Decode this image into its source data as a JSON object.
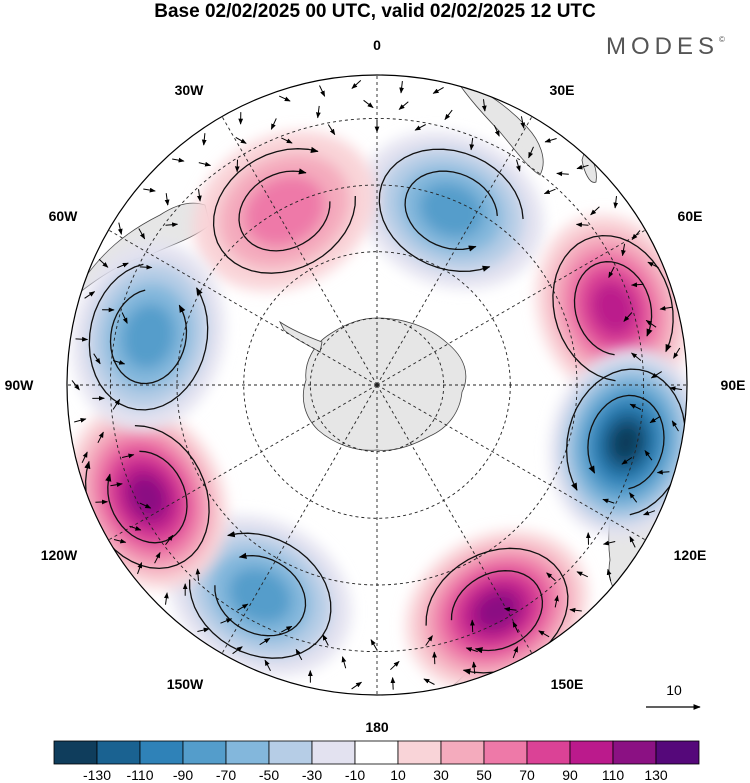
{
  "title": "Base 02/02/2025 00 UTC, valid 02/02/2025 12 UTC",
  "brand": "MODES",
  "brand_mark": "©",
  "longitude_labels": {
    "lon_0": "0",
    "lon_30e": "30E",
    "lon_60e": "60E",
    "lon_90e": "90E",
    "lon_120e": "120E",
    "lon_150e": "150E",
    "lon_180": "180",
    "lon_150w": "150W",
    "lon_120w": "120W",
    "lon_90w": "90W",
    "lon_60w": "60W",
    "lon_30w": "30W"
  },
  "vector_reference": {
    "value": "10"
  },
  "colorbar": {
    "colors": [
      "#0f3d5c",
      "#1a6291",
      "#2f82b8",
      "#549dcb",
      "#83b7dc",
      "#b6cde6",
      "#e3e2f0",
      "#ffffff",
      "#f9d4d8",
      "#f4abbd",
      "#ee79a8",
      "#db4296",
      "#bb1a8c",
      "#8b1183",
      "#55087a"
    ],
    "tick_labels": [
      "-130",
      "-110",
      "-90",
      "-70",
      "-50",
      "-30",
      "-10",
      "10",
      "30",
      "50",
      "70",
      "90",
      "110",
      "130"
    ]
  },
  "anomaly_centers": [
    {
      "lon": 23,
      "colat": 26,
      "sign": "negative",
      "magnitude": 80
    },
    {
      "lon": -28,
      "colat": 27,
      "sign": "positive",
      "magnitude": 50
    },
    {
      "lon": 72,
      "colat": 34,
      "sign": "positive",
      "magnitude": 100
    },
    {
      "lon": 103,
      "colat": 35,
      "sign": "negative",
      "magnitude": 130
    },
    {
      "lon": 152,
      "colat": 35,
      "sign": "positive",
      "magnitude": 110
    },
    {
      "lon": -151,
      "colat": 33,
      "sign": "negative",
      "magnitude": 85
    },
    {
      "lon": -116,
      "colat": 35,
      "sign": "positive",
      "magnitude": 110
    },
    {
      "lon": -78,
      "colat": 32,
      "sign": "negative",
      "magnitude": 75
    }
  ]
}
